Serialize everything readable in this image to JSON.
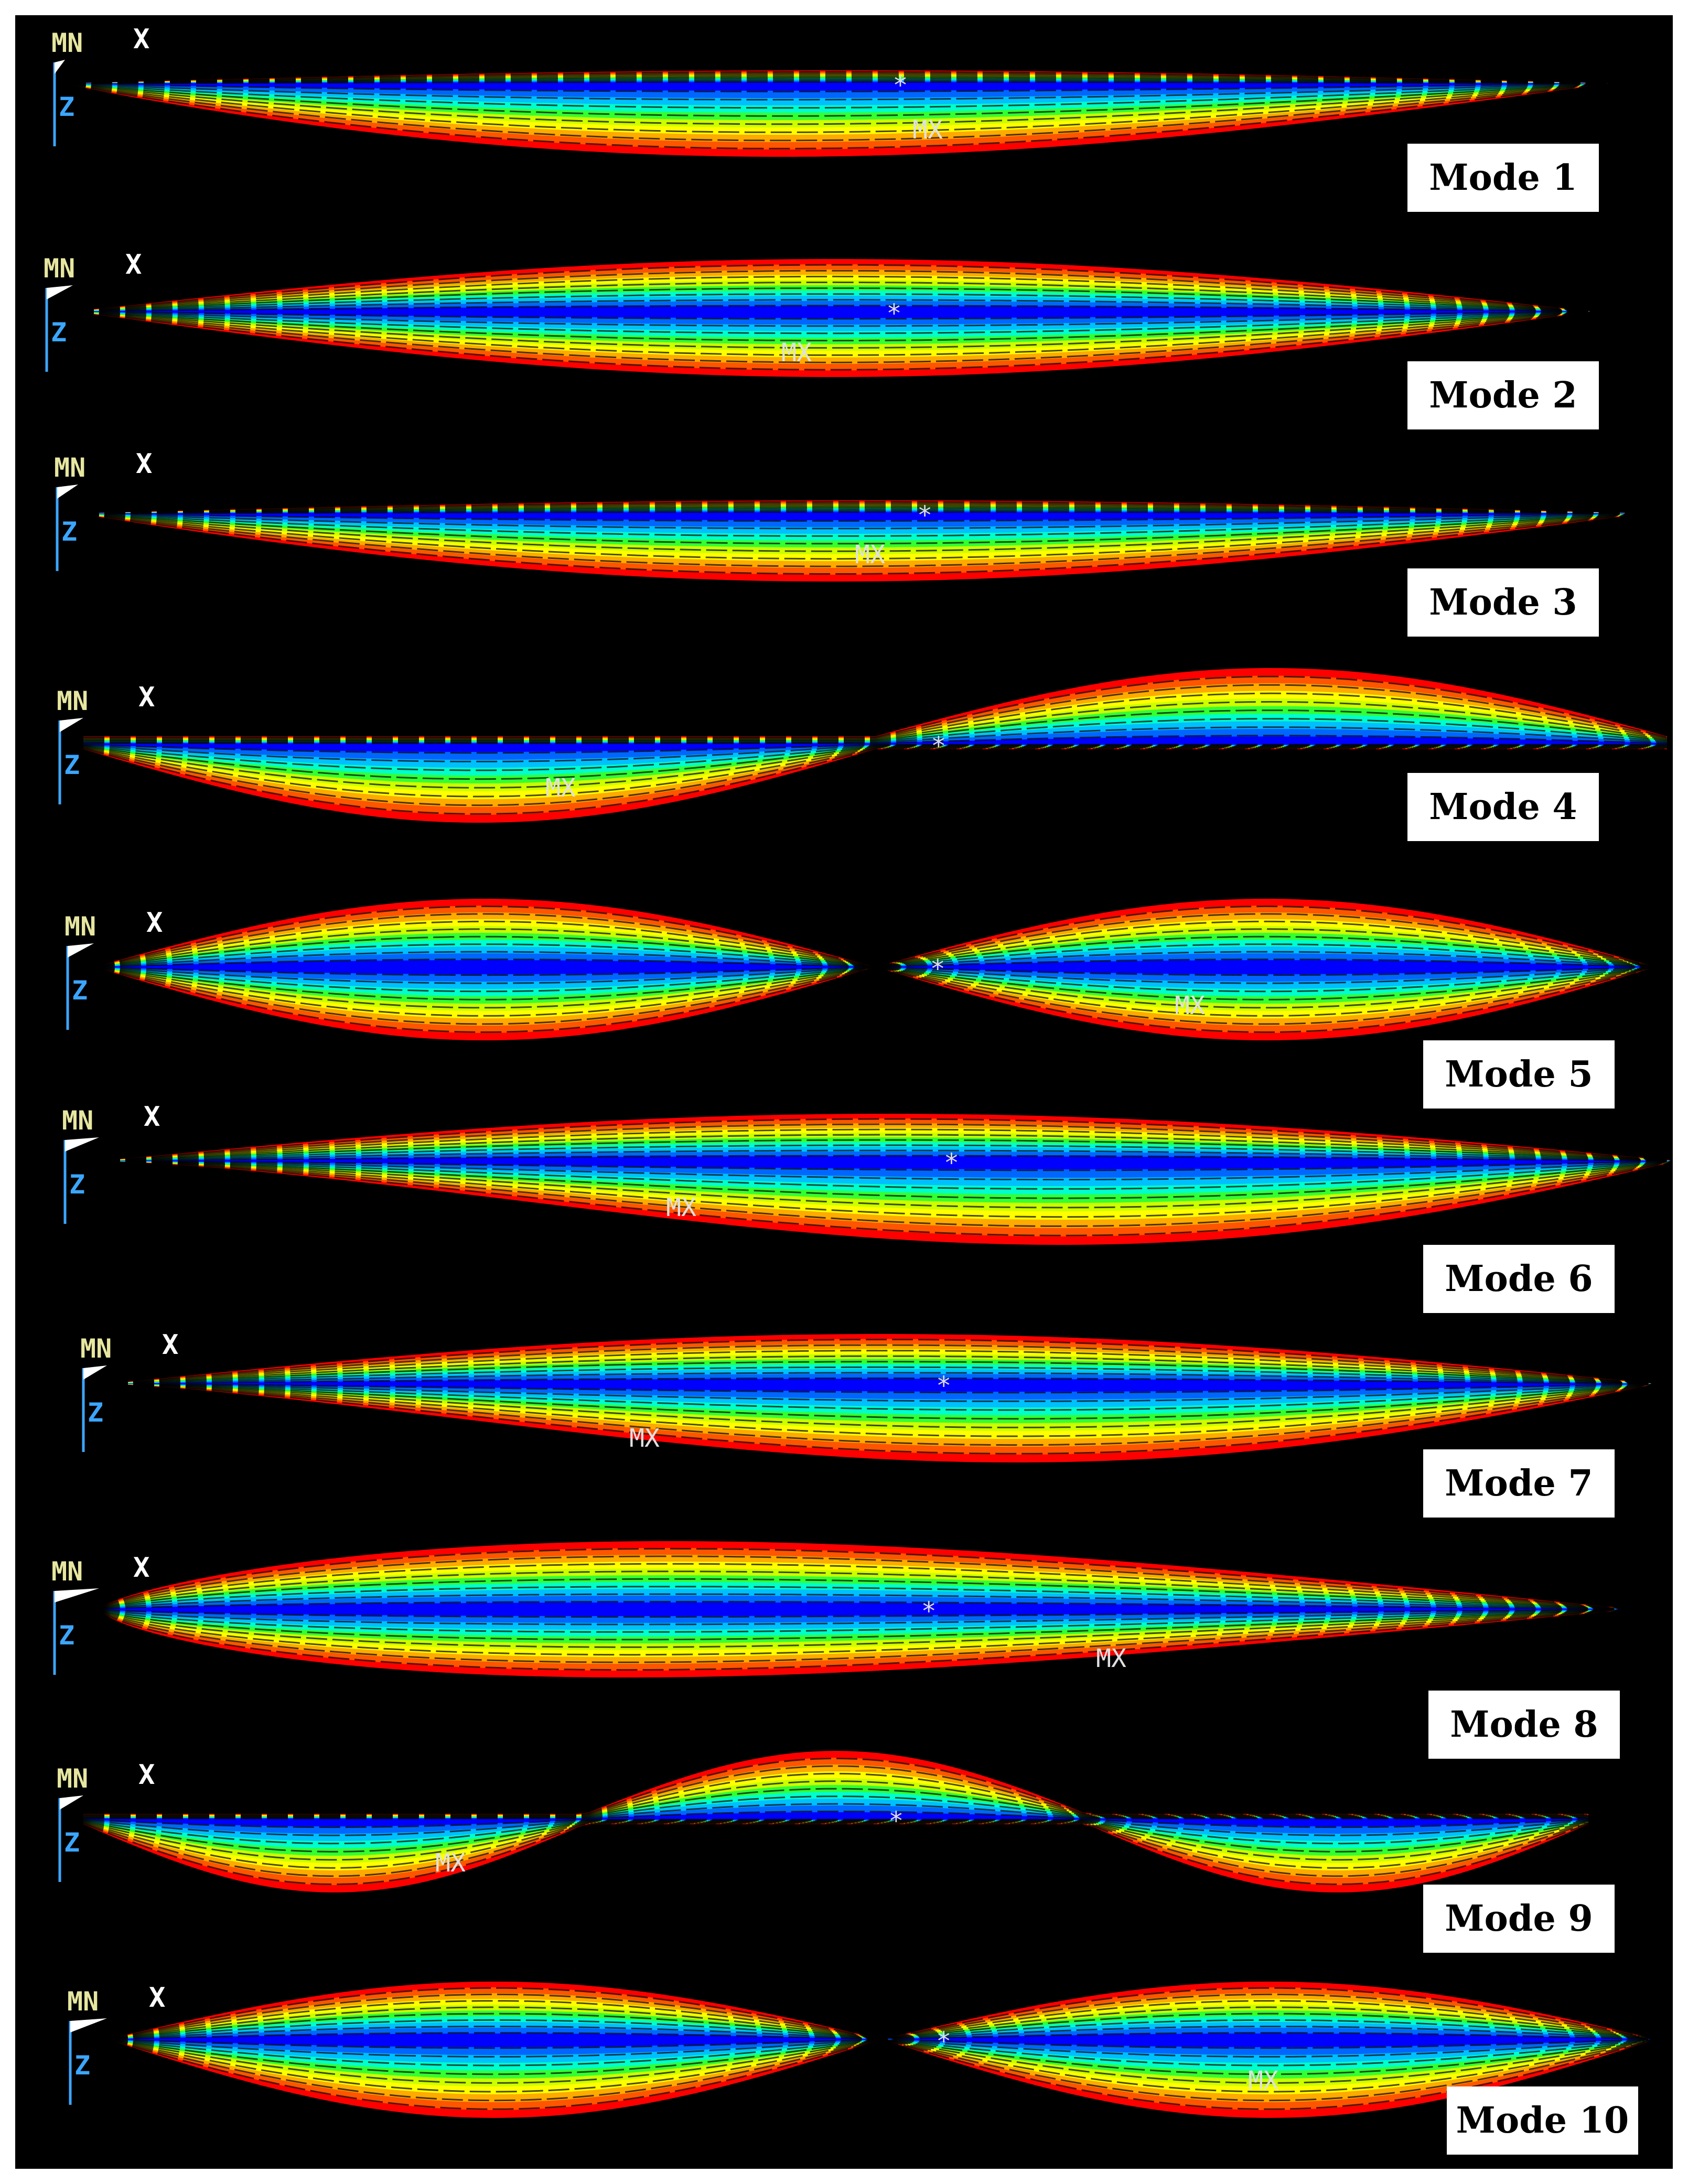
{
  "figure": {
    "background": "#000000",
    "panels": [
      {
        "label": "Mode 1",
        "axis": {
          "min_label": "MN",
          "x_label": "X",
          "z_label": "Z"
        },
        "shape": "single downward arch"
      },
      {
        "label": "Mode 2",
        "axis": {
          "min_label": "MN",
          "x_label": "X",
          "z_label": "Z"
        },
        "shape": "symmetric double-sided arch"
      },
      {
        "label": "Mode 3",
        "axis": {
          "min_label": "MN",
          "x_label": "X",
          "z_label": "Z"
        },
        "shape": "single downward arch with wire mesh"
      },
      {
        "label": "Mode 4",
        "axis": {
          "min_label": "MN",
          "x_label": "X",
          "z_label": "Z"
        },
        "shape": "antisymmetric S-wave"
      },
      {
        "label": "Mode 5",
        "axis": {
          "min_label": "MN",
          "x_label": "X",
          "z_label": "Z"
        },
        "shape": "two symmetric lobes"
      },
      {
        "label": "Mode 6",
        "axis": {
          "min_label": "MN",
          "x_label": "X",
          "z_label": "Z"
        },
        "shape": "asymmetric mesh sag"
      },
      {
        "label": "Mode 7",
        "axis": {
          "min_label": "MN",
          "x_label": "X",
          "z_label": "Z"
        },
        "shape": "mesh sag with upper bulge"
      },
      {
        "label": "Mode 8",
        "axis": {
          "min_label": "MN",
          "x_label": "X",
          "z_label": "Z"
        },
        "shape": "right-heavy bulge"
      },
      {
        "label": "Mode 9",
        "axis": {
          "min_label": "MN",
          "x_label": "X",
          "z_label": "Z"
        },
        "shape": "triple wave"
      },
      {
        "label": "Mode 10",
        "axis": {
          "min_label": "MN",
          "x_label": "X",
          "z_label": "Z"
        },
        "shape": "two lobes with mesh"
      }
    ],
    "markers": {
      "max": "MX",
      "center": "*"
    },
    "colormap": [
      "#0000ff",
      "#0066ff",
      "#00bfff",
      "#00ffcc",
      "#33ff33",
      "#ccff00",
      "#ffff00",
      "#ffaa00",
      "#ff5500",
      "#ff0000"
    ]
  }
}
